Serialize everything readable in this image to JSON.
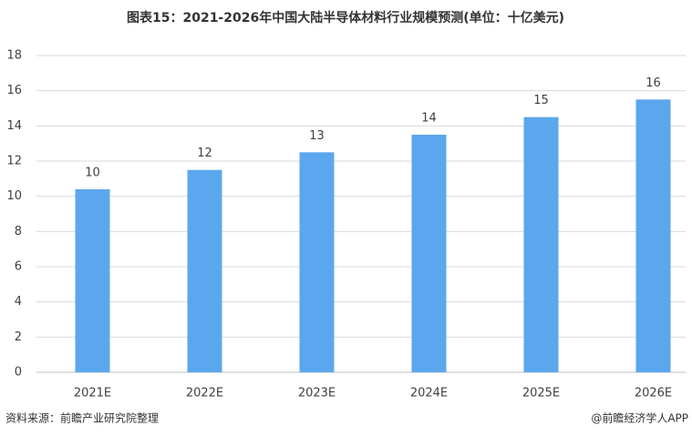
{
  "chart_data": {
    "type": "bar",
    "title": "图表15：2021-2026年中国大陆半导体材料行业规模预测(单位：十亿美元)",
    "categories": [
      "2021E",
      "2022E",
      "2023E",
      "2024E",
      "2025E",
      "2026E"
    ],
    "values": [
      10.4,
      11.5,
      12.5,
      13.5,
      14.5,
      15.5
    ],
    "value_labels": [
      "10",
      "12",
      "13",
      "14",
      "15",
      "16"
    ],
    "color": "#5ba7ee",
    "ylim": [
      0,
      18
    ],
    "yticks": [
      0,
      2,
      4,
      6,
      8,
      10,
      12,
      14,
      16,
      18
    ],
    "grid": true,
    "source": "资料来源：前瞻产业研究院整理",
    "credit": "@前瞻经济学人APP"
  }
}
